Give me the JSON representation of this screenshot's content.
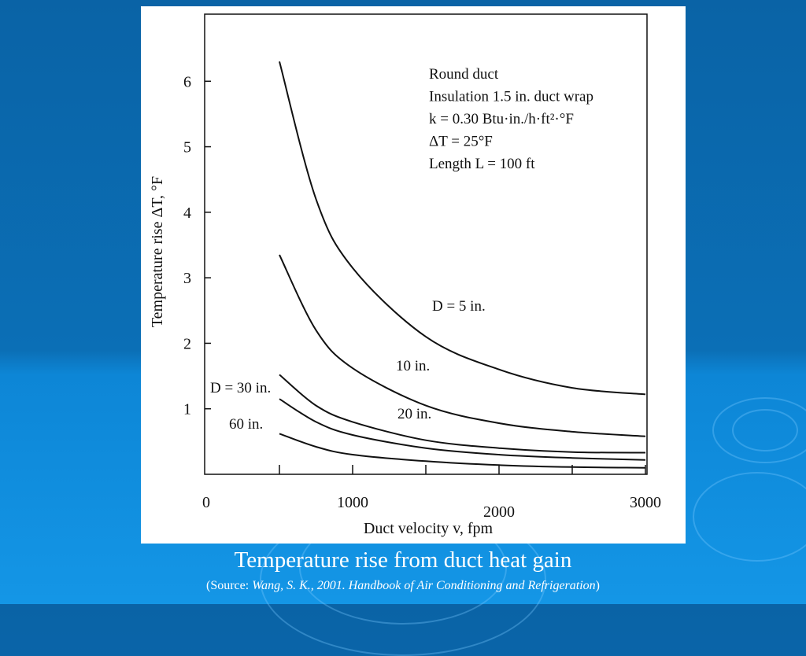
{
  "slide": {
    "caption": "Temperature rise from duct heat gain",
    "source_prefix": "(Source: ",
    "source_italic": "Wang, S. K., 2001. Handbook of Air Conditioning and Refrigeration",
    "source_suffix": ")"
  },
  "colors": {
    "background_top": "#0a63a6",
    "background_bottom": "#1496e6",
    "panel": "#ffffff",
    "ink": "#111111"
  },
  "chart_data": {
    "type": "line",
    "xlabel": "Duct velocity v, fpm",
    "ylabel": "Temperature rise ΔT, °F",
    "xlim": [
      0,
      3000
    ],
    "ylim": [
      0,
      7
    ],
    "x_ticks": [
      0,
      1000,
      2000,
      3000
    ],
    "y_ticks": [
      1,
      2,
      3,
      4,
      5,
      6
    ],
    "x_tick_labels": [
      "0",
      "1000",
      "2000",
      "3000"
    ],
    "y_tick_labels": [
      "1",
      "2",
      "3",
      "4",
      "5",
      "6"
    ],
    "grid": false,
    "annotation_lines": [
      "Round duct",
      "Insulation 1.5 in. duct wrap",
      "k = 0.30 Btu·in./h·ft²·°F",
      "ΔT = 25°F",
      "Length L = 100 ft"
    ],
    "series": [
      {
        "name": "D = 5 in.",
        "x": [
          500,
          750,
          1000,
          1500,
          2000,
          2500,
          3000
        ],
        "values": [
          6.3,
          4.2,
          3.15,
          2.1,
          1.6,
          1.32,
          1.22
        ]
      },
      {
        "name": "10 in.",
        "x": [
          500,
          750,
          1000,
          1500,
          2000,
          2500,
          3000
        ],
        "values": [
          3.35,
          2.2,
          1.62,
          1.05,
          0.78,
          0.65,
          0.58
        ]
      },
      {
        "name": "20 in.",
        "x": [
          500,
          750,
          1000,
          1500,
          2000,
          2500,
          3000
        ],
        "values": [
          1.52,
          1.05,
          0.8,
          0.52,
          0.4,
          0.34,
          0.33
        ]
      },
      {
        "name": "D = 30 in.",
        "x": [
          500,
          750,
          1000,
          1500,
          2000,
          2500,
          3000
        ],
        "values": [
          1.15,
          0.8,
          0.6,
          0.4,
          0.3,
          0.25,
          0.22
        ]
      },
      {
        "name": "60 in.",
        "x": [
          500,
          750,
          1000,
          1500,
          2000,
          2500,
          3000
        ],
        "values": [
          0.62,
          0.42,
          0.3,
          0.2,
          0.14,
          0.11,
          0.1
        ]
      }
    ]
  }
}
